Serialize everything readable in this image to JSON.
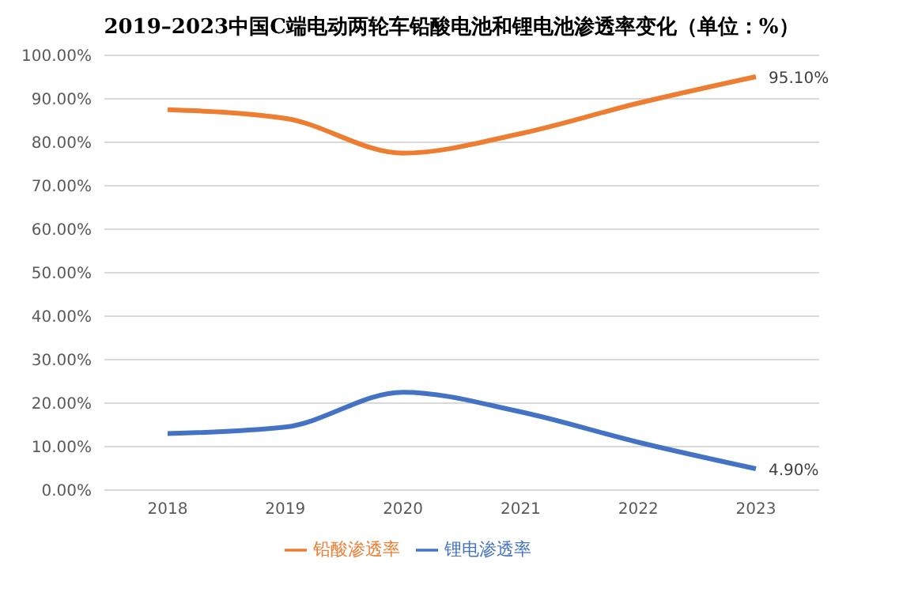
{
  "chart_data": {
    "type": "line",
    "title": "2019–2023中国C端电动两轮车铅酸电池和锂电池渗透率变化（单位：%）",
    "categories": [
      "2018",
      "2019",
      "2020",
      "2021",
      "2022",
      "2023"
    ],
    "series": [
      {
        "name": "锂电渗透率",
        "color": "#4472c4",
        "values": [
          13,
          14.5,
          22.5,
          18,
          11,
          4.9
        ],
        "value_labels": [
          null,
          null,
          null,
          null,
          null,
          "4.90%"
        ]
      },
      {
        "name": "铅酸渗透率",
        "color": "#ed7d31",
        "values": [
          87.5,
          85.5,
          77.5,
          82,
          89,
          95.1
        ],
        "value_labels": [
          null,
          null,
          null,
          null,
          null,
          "95.10%"
        ]
      }
    ],
    "ylim": [
      0,
      100
    ],
    "yticks": [
      {
        "value": 0,
        "label": "0.00%"
      },
      {
        "value": 10,
        "label": "10.00%"
      },
      {
        "value": 20,
        "label": "20.00%"
      },
      {
        "value": 30,
        "label": "30.00%"
      },
      {
        "value": 40,
        "label": "40.00%"
      },
      {
        "value": 50,
        "label": "50.00%"
      },
      {
        "value": 60,
        "label": "60.00%"
      },
      {
        "value": 70,
        "label": "70.00%"
      },
      {
        "value": 80,
        "label": "80.00%"
      },
      {
        "value": 90,
        "label": "90.00%"
      },
      {
        "value": 100,
        "label": "100.00%"
      }
    ],
    "grid": "y",
    "legend": "bottom",
    "marker": "none",
    "line_style": "solid"
  }
}
